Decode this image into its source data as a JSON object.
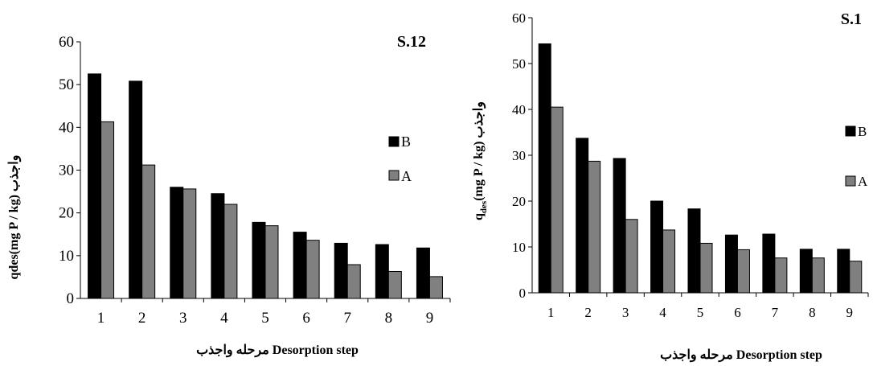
{
  "chart_data": [
    {
      "type": "bar",
      "panel_label": "S.12",
      "categories": [
        "1",
        "2",
        "3",
        "4",
        "5",
        "6",
        "7",
        "8",
        "9"
      ],
      "series": [
        {
          "name": "B",
          "color": "#000000",
          "values": [
            52.5,
            50.8,
            26.0,
            24.5,
            17.8,
            15.5,
            12.9,
            12.6,
            11.8
          ]
        },
        {
          "name": "A",
          "color": "#808080",
          "values": [
            41.3,
            31.2,
            25.6,
            22.0,
            17.0,
            13.6,
            7.9,
            6.3,
            5.1
          ]
        }
      ],
      "xlabel": "مرحله واجذب Desorption step",
      "ylabel": "qdes(mg P / kg) واجذب",
      "ylim": [
        0,
        60
      ],
      "yticks": [
        0,
        10,
        20,
        30,
        40,
        50,
        60
      ],
      "grid": false,
      "legend": "right"
    },
    {
      "type": "bar",
      "panel_label": "S.1",
      "categories": [
        "1",
        "2",
        "3",
        "4",
        "5",
        "6",
        "7",
        "8",
        "9"
      ],
      "series": [
        {
          "name": "B",
          "color": "#000000",
          "values": [
            54.3,
            33.7,
            29.3,
            20.0,
            18.3,
            12.6,
            12.8,
            9.5,
            9.5
          ]
        },
        {
          "name": "A",
          "color": "#808080",
          "values": [
            40.5,
            28.7,
            16.0,
            13.7,
            10.8,
            9.4,
            7.6,
            7.6,
            6.9
          ]
        }
      ],
      "xlabel": "مرحله واجذب Desorption step",
      "ylabel_main": "q",
      "ylabel_sub": "des",
      "ylabel_rest": "(mg P / kg) واجذب",
      "ylim": [
        0,
        60
      ],
      "yticks": [
        0,
        10,
        20,
        30,
        40,
        50,
        60
      ],
      "grid": false,
      "legend": "right"
    }
  ]
}
